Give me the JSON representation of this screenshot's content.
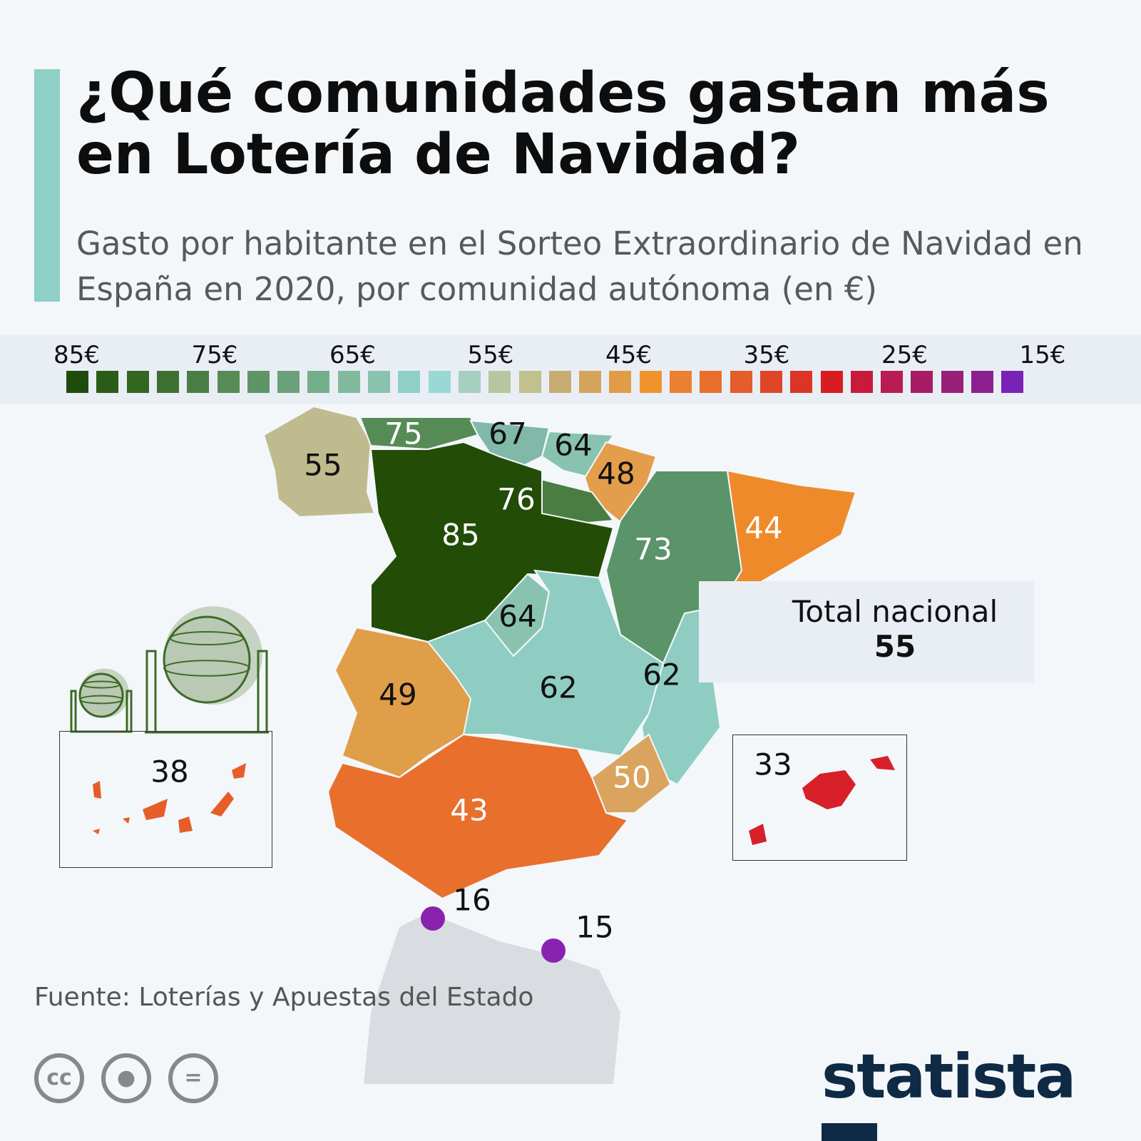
{
  "header": {
    "title": "¿Qué comunidades gastan más en Lotería de Navidad?",
    "subtitle": "Gasto por habitante en el Sorteo Extraordinario de Navidad en España en 2020, por comunidad autónoma (en €)"
  },
  "legend": {
    "ticks": [
      "85€",
      "75€",
      "65€",
      "55€",
      "45€",
      "35€",
      "25€",
      "15€"
    ],
    "colors": [
      "#1f4b0b",
      "#2b5c17",
      "#33671f",
      "#3d7030",
      "#4a7d44",
      "#568b56",
      "#5f9566",
      "#6aa17a",
      "#75ae8a",
      "#80b99b",
      "#89c3b0",
      "#8fcfc6",
      "#99d8d4",
      "#a6cfbf",
      "#b6c7a0",
      "#c2c08c",
      "#c7ad73",
      "#d5a45c",
      "#e19c48",
      "#ef942c",
      "#ea8030",
      "#e86f2c",
      "#e45d2a",
      "#df4628",
      "#db3527",
      "#d81d22",
      "#c81b3a",
      "#b81c53",
      "#a81c66",
      "#9a1f7b",
      "#8c2090",
      "#7b22b6"
    ]
  },
  "regions": [
    {
      "value": 55,
      "color": "#c0bb8e"
    },
    {
      "value": 75,
      "color": "#568b56"
    },
    {
      "value": 67,
      "color": "#80b9a8"
    },
    {
      "value": 64,
      "color": "#89c3b0"
    },
    {
      "value": 48,
      "color": "#e49d4a"
    },
    {
      "value": 76,
      "color": "#4a7d44"
    },
    {
      "value": 85,
      "color": "#234c07"
    },
    {
      "value": 73,
      "color": "#5a9468"
    },
    {
      "value": 44,
      "color": "#ef8a2a"
    },
    {
      "value": 64,
      "color": "#89c3b0"
    },
    {
      "value": 62,
      "color": "#8fcdc2"
    },
    {
      "value": 62,
      "color": "#8fcdc2"
    },
    {
      "value": 49,
      "color": "#e09e48"
    },
    {
      "value": 50,
      "color": "#dba45e"
    },
    {
      "value": 43,
      "color": "#e86f2c"
    },
    {
      "value": 38,
      "color": "#e65d2a"
    },
    {
      "value": 33,
      "color": "#d8202a"
    },
    {
      "value": 16,
      "color": "#8a22b0"
    },
    {
      "value": 15,
      "color": "#8a22b0"
    }
  ],
  "total": {
    "label": "Total nacional",
    "value": "55"
  },
  "source": "Fuente: Loterías y Apuestas del Estado",
  "brand": "statista",
  "license_icons": [
    "cc-icon",
    "attribution-icon",
    "no-derivatives-icon"
  ]
}
